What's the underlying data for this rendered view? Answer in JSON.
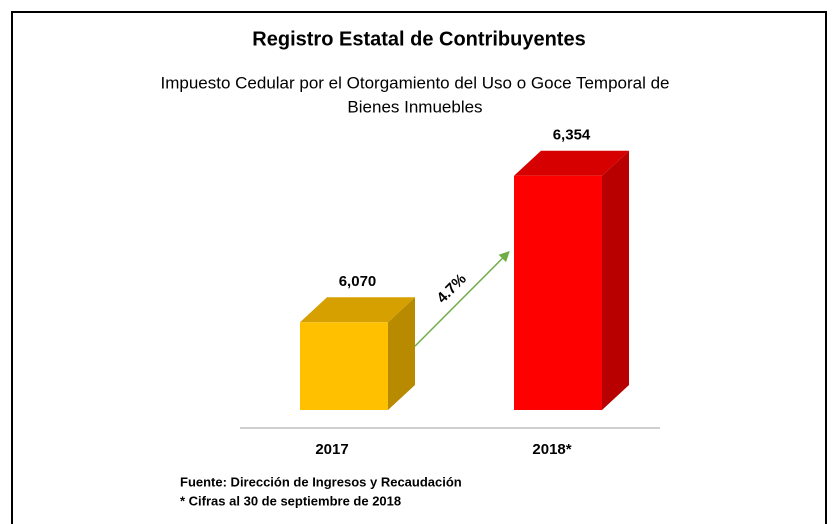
{
  "chart_data": {
    "type": "bar3d",
    "title": "Registro Estatal de Contribuyentes",
    "subtitle": [
      "Impuesto Cedular por el Otorgamiento del Uso o Goce Temporal de",
      "Bienes Inmuebles"
    ],
    "categories": [
      "2017",
      "2018*"
    ],
    "values": [
      6070,
      6354
    ],
    "value_labels": [
      "6,070",
      "6,354"
    ],
    "colors": [
      "#ffc000",
      "#ff0000"
    ],
    "ylim": [
      5900,
      6400
    ],
    "annotation": "4.7%",
    "annotation_color": "#70ad47",
    "notes": [
      "Fuente: Dirección de Ingresos y Recaudación",
      "* Cifras al 30 de septiembre de 2018"
    ]
  }
}
